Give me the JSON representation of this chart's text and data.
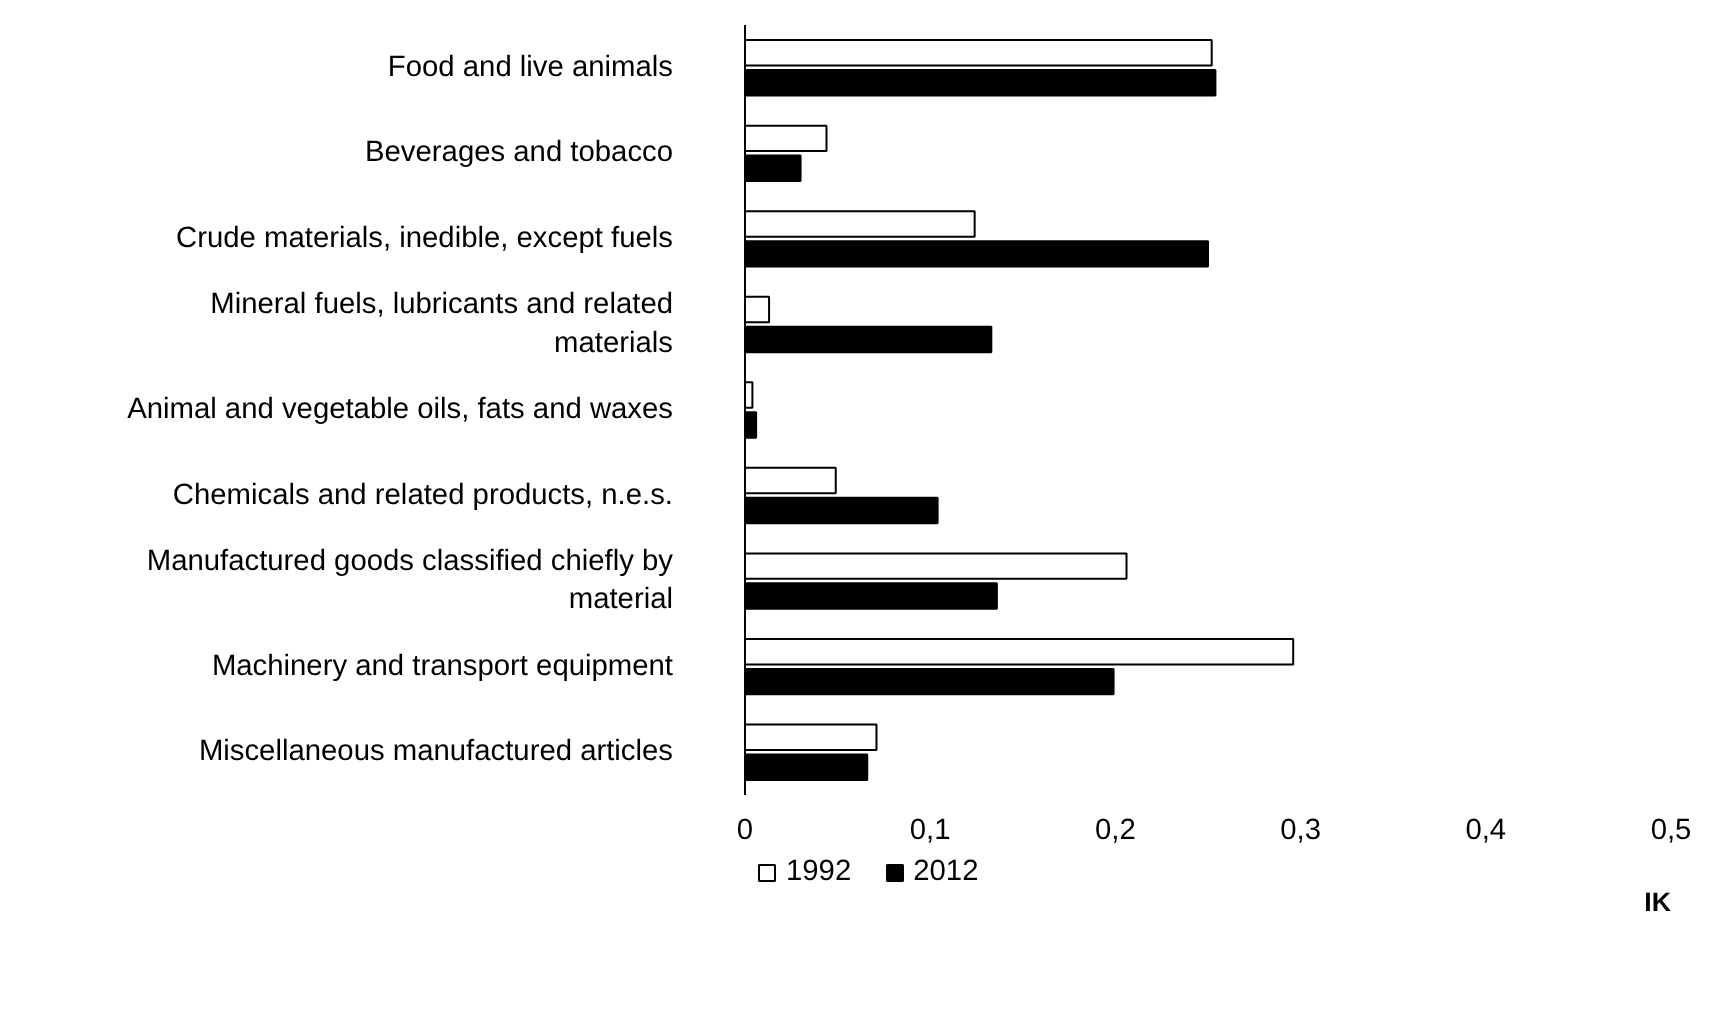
{
  "chart_data": {
    "type": "bar",
    "orientation": "horizontal",
    "categories": [
      "Food and live animals",
      "Beverages and tobacco",
      "Crude materials, inedible, except fuels",
      "Mineral fuels, lubricants and related materials",
      "Animal and vegetable oils, fats and waxes",
      "Chemicals and related products, n.e.s.",
      "Manufactured goods classified chiefly by material",
      "Machinery and transport equipment",
      "Miscellaneous manufactured articles"
    ],
    "series": [
      {
        "name": "1992",
        "color": "#ffffff",
        "values": [
          0.252,
          0.044,
          0.124,
          0.013,
          0.004,
          0.049,
          0.206,
          0.296,
          0.071
        ]
      },
      {
        "name": "2012",
        "color": "#000000",
        "values": [
          0.254,
          0.03,
          0.25,
          0.133,
          0.006,
          0.104,
          0.136,
          0.199,
          0.066
        ]
      }
    ],
    "xlim": [
      0,
      0.5
    ],
    "xticks": [
      {
        "value": 0,
        "label": "0"
      },
      {
        "value": 0.1,
        "label": "0,1"
      },
      {
        "value": 0.2,
        "label": "0,2"
      },
      {
        "value": 0.3,
        "label": "0,3"
      },
      {
        "value": 0.4,
        "label": "0,4"
      },
      {
        "value": 0.5,
        "label": "0,5"
      }
    ],
    "legend": "bottom left",
    "grid": false,
    "annotations": [
      "IK"
    ]
  }
}
